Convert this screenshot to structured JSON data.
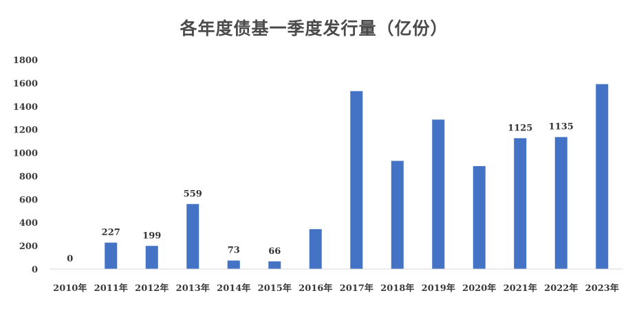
{
  "chart_data": {
    "type": "bar",
    "title": "各年度债基一季度发行量（亿份）",
    "xlabel": "",
    "ylabel": "",
    "ylim": [
      0,
      1800
    ],
    "yticks": [
      0,
      200,
      400,
      600,
      800,
      1000,
      1200,
      1400,
      1600,
      1800
    ],
    "grid": false,
    "legend": "none",
    "bar_color": "#4472c4",
    "categories": [
      "2010年",
      "2011年",
      "2012年",
      "2013年",
      "2014年",
      "2015年",
      "2016年",
      "2017年",
      "2018年",
      "2019年",
      "2020年",
      "2021年",
      "2022年",
      "2023年"
    ],
    "values": [
      0,
      227,
      199,
      559,
      73,
      66,
      343,
      1530,
      930,
      1285,
      885,
      1125,
      1135,
      1590
    ],
    "data_labels": [
      "0",
      "227",
      "199",
      "559",
      "73",
      "66",
      "",
      "",
      "",
      "",
      "",
      "1125",
      "1135",
      ""
    ]
  }
}
